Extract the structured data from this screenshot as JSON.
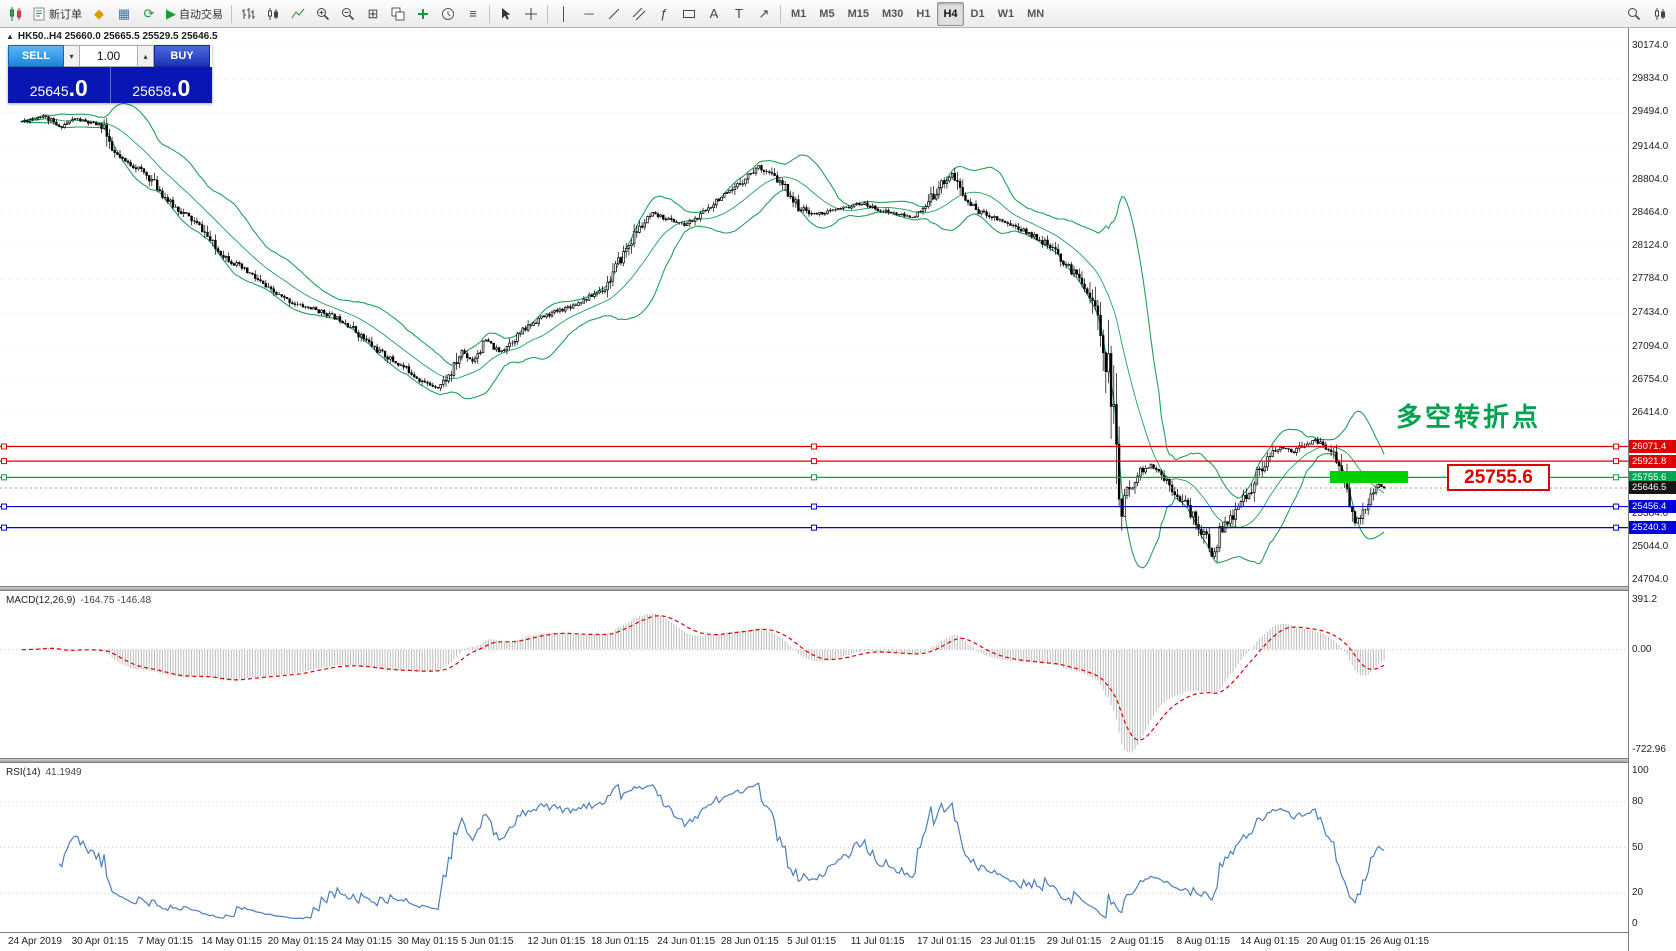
{
  "colors": {
    "band_green": "#1fa356",
    "rsi_blue": "#4a7ec0",
    "macd_hist": "#bcbcbc",
    "macd_signal": "#e00000",
    "current_badge": "#151515",
    "level_red": "#e00000",
    "level_green": "#00a650",
    "level_blue": "#0000dd",
    "highlight_green": "#00d200"
  },
  "toolbar": {
    "new_order": "新订单",
    "auto_trading": "自动交易",
    "timeframes": [
      "M1",
      "M5",
      "M15",
      "M30",
      "H1",
      "H4",
      "D1",
      "W1",
      "MN"
    ],
    "active_timeframe": "H4"
  },
  "order_panel": {
    "sell_label": "SELL",
    "buy_label": "BUY",
    "volume": "1.00",
    "sell_price": "25645",
    "sell_pips": ".0",
    "buy_price": "25658",
    "buy_pips": ".0"
  },
  "chart": {
    "title": "HK50..H4 25660.0 25665.5 25529.5 25646.5",
    "annotation": "多空转折点",
    "level_label": "25755.6"
  },
  "macd_panel": {
    "label": "MACD(12,26,9)",
    "values": "-164.75 -146.48",
    "axis": [
      "391.2",
      "0.00",
      "-722.96"
    ]
  },
  "rsi_panel": {
    "label": "RSI(14)",
    "value": "41.1949",
    "axis": [
      100,
      80,
      50,
      20,
      0
    ],
    "levels": [
      80,
      50,
      20
    ]
  },
  "chart_data": {
    "type": "candlestick",
    "symbol": "HK50",
    "timeframe": "H4",
    "ohlc": {
      "open": 25660.0,
      "high": 25665.5,
      "low": 25529.5,
      "close": 25646.5
    },
    "current_price": 25646.5,
    "price_range": [
      24704.0,
      30174.0
    ],
    "price_axis_ticks": [
      30174.0,
      29834.0,
      29494.0,
      29144.0,
      28804.0,
      28464.0,
      28124.0,
      27784.0,
      27434.0,
      27094.0,
      26754.0,
      26414.0,
      25384.0,
      25044.0,
      24704.0
    ],
    "levels": [
      {
        "value": 26071.4,
        "color": "red"
      },
      {
        "value": 25921.8,
        "color": "red"
      },
      {
        "value": 25755.6,
        "color": "green"
      },
      {
        "value": 25456.4,
        "color": "blue"
      },
      {
        "value": 25240.3,
        "color": "blue"
      }
    ],
    "bollinger": {
      "period": 20,
      "deviation": 2
    },
    "macd": {
      "fast": 12,
      "slow": 26,
      "signal": 9,
      "axis_max": 391.2,
      "axis_min": -722.96
    },
    "rsi": {
      "period": 14
    },
    "candle_count": 515,
    "price_path": [
      [
        0,
        29400
      ],
      [
        8,
        29460
      ],
      [
        14,
        29340
      ],
      [
        20,
        29430
      ],
      [
        26,
        29380
      ],
      [
        31,
        29360
      ],
      [
        33,
        29120
      ],
      [
        38,
        29000
      ],
      [
        44,
        28920
      ],
      [
        49,
        28800
      ],
      [
        56,
        28560
      ],
      [
        62,
        28440
      ],
      [
        68,
        28300
      ],
      [
        73,
        28100
      ],
      [
        80,
        27950
      ],
      [
        87,
        27820
      ],
      [
        93,
        27680
      ],
      [
        98,
        27600
      ],
      [
        104,
        27520
      ],
      [
        110,
        27480
      ],
      [
        116,
        27420
      ],
      [
        122,
        27350
      ],
      [
        128,
        27200
      ],
      [
        134,
        27060
      ],
      [
        140,
        26950
      ],
      [
        146,
        26850
      ],
      [
        152,
        26720
      ],
      [
        157,
        26680
      ],
      [
        162,
        26820
      ],
      [
        166,
        27050
      ],
      [
        170,
        26950
      ],
      [
        175,
        27160
      ],
      [
        180,
        27040
      ],
      [
        186,
        27180
      ],
      [
        191,
        27300
      ],
      [
        195,
        27380
      ],
      [
        201,
        27450
      ],
      [
        208,
        27520
      ],
      [
        214,
        27600
      ],
      [
        220,
        27700
      ],
      [
        226,
        28000
      ],
      [
        232,
        28280
      ],
      [
        238,
        28450
      ],
      [
        244,
        28400
      ],
      [
        250,
        28340
      ],
      [
        256,
        28430
      ],
      [
        262,
        28600
      ],
      [
        268,
        28680
      ],
      [
        273,
        28830
      ],
      [
        278,
        28940
      ],
      [
        283,
        28850
      ],
      [
        288,
        28720
      ],
      [
        293,
        28520
      ],
      [
        299,
        28450
      ],
      [
        305,
        28480
      ],
      [
        311,
        28520
      ],
      [
        317,
        28560
      ],
      [
        323,
        28500
      ],
      [
        329,
        28460
      ],
      [
        335,
        28420
      ],
      [
        340,
        28480
      ],
      [
        346,
        28740
      ],
      [
        351,
        28860
      ],
      [
        356,
        28600
      ],
      [
        361,
        28480
      ],
      [
        366,
        28430
      ],
      [
        372,
        28360
      ],
      [
        378,
        28280
      ],
      [
        384,
        28200
      ],
      [
        390,
        28060
      ],
      [
        395,
        27900
      ],
      [
        400,
        27780
      ],
      [
        404,
        27560
      ],
      [
        408,
        27150
      ],
      [
        411,
        26650
      ],
      [
        412,
        26250
      ],
      [
        413,
        26050
      ],
      [
        414,
        25400
      ],
      [
        416,
        25550
      ],
      [
        419,
        25700
      ],
      [
        422,
        25820
      ],
      [
        426,
        25870
      ],
      [
        430,
        25780
      ],
      [
        434,
        25650
      ],
      [
        438,
        25520
      ],
      [
        441,
        25400
      ],
      [
        444,
        25250
      ],
      [
        447,
        25120
      ],
      [
        449,
        24940
      ],
      [
        452,
        25200
      ],
      [
        456,
        25320
      ],
      [
        460,
        25500
      ],
      [
        463,
        25600
      ],
      [
        466,
        25780
      ],
      [
        469,
        25900
      ],
      [
        472,
        26000
      ],
      [
        476,
        26060
      ],
      [
        480,
        26020
      ],
      [
        484,
        26090
      ],
      [
        488,
        26130
      ],
      [
        492,
        26060
      ],
      [
        495,
        26010
      ],
      [
        497,
        25880
      ],
      [
        499,
        25700
      ],
      [
        501,
        25450
      ],
      [
        503,
        25300
      ],
      [
        506,
        25380
      ],
      [
        509,
        25560
      ],
      [
        512,
        25660
      ],
      [
        514,
        25646.5
      ]
    ],
    "x_labels": [
      "24 Apr 2019",
      "30 Apr 01:15",
      "7 May 01:15",
      "14 May 01:15",
      "20 May 01:15",
      "24 May 01:15",
      "30 May 01:15",
      "5 Jun 01:15",
      "12 Jun 01:15",
      "18 Jun 01:15",
      "24 Jun 01:15",
      "28 Jun 01:15",
      "5 Jul 01:15",
      "11 Jul 01:15",
      "17 Jul 01:15",
      "23 Jul 01:15",
      "29 Jul 01:15",
      "2 Aug 01:15",
      "8 Aug 01:15",
      "14 Aug 01:15",
      "20 Aug 01:15",
      "26 Aug 01:15"
    ]
  }
}
